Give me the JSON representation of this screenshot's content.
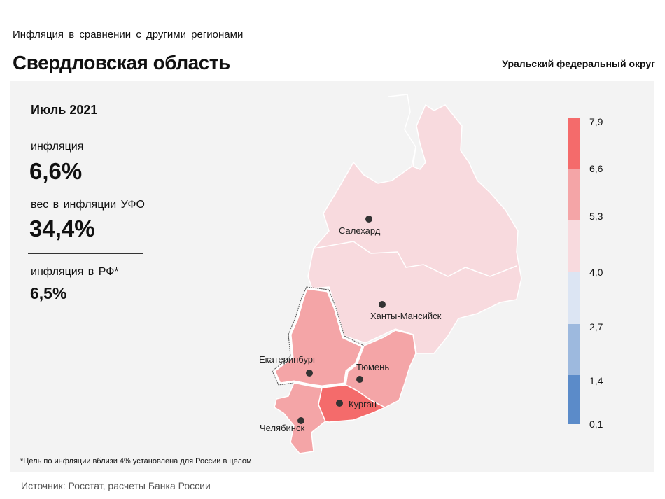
{
  "header": {
    "supertitle": "Инфляция  в сравнении  с другими  регионами",
    "title": "Свердловская область",
    "district": "Уральский федеральный округ"
  },
  "stats": {
    "period": "Июль 2021",
    "inflation_label": "инфляция",
    "inflation_value": "6,6%",
    "weight_label": "вес в инфляции  УФО",
    "weight_value": "34,4%",
    "rf_label": "инфляция  в РФ*",
    "rf_value": "6,5%"
  },
  "footnote": "*Цель по инфляции вблизи 4% установлена для России в целом",
  "source": "Источник: Росстат, расчеты Банка России",
  "colors": {
    "c_66_79": "#f46b6b",
    "c_53_66": "#f4a5a7",
    "c_40_53": "#f8dade",
    "c_27_40": "#dce5f3",
    "c_14_27": "#9db9de",
    "c_01_14": "#5b8bc9"
  },
  "legend": {
    "ticks": [
      "7,9",
      "6,6",
      "5,3",
      "4,0",
      "2,7",
      "1,4",
      "0,1"
    ]
  },
  "cities": {
    "salekhard": "Салехард",
    "khanty": "Ханты-Мансийск",
    "yekaterinburg": "Екатеринбург",
    "tyumen": "Тюмень",
    "kurgan": "Курган",
    "chelyabinsk": "Челябинск"
  }
}
